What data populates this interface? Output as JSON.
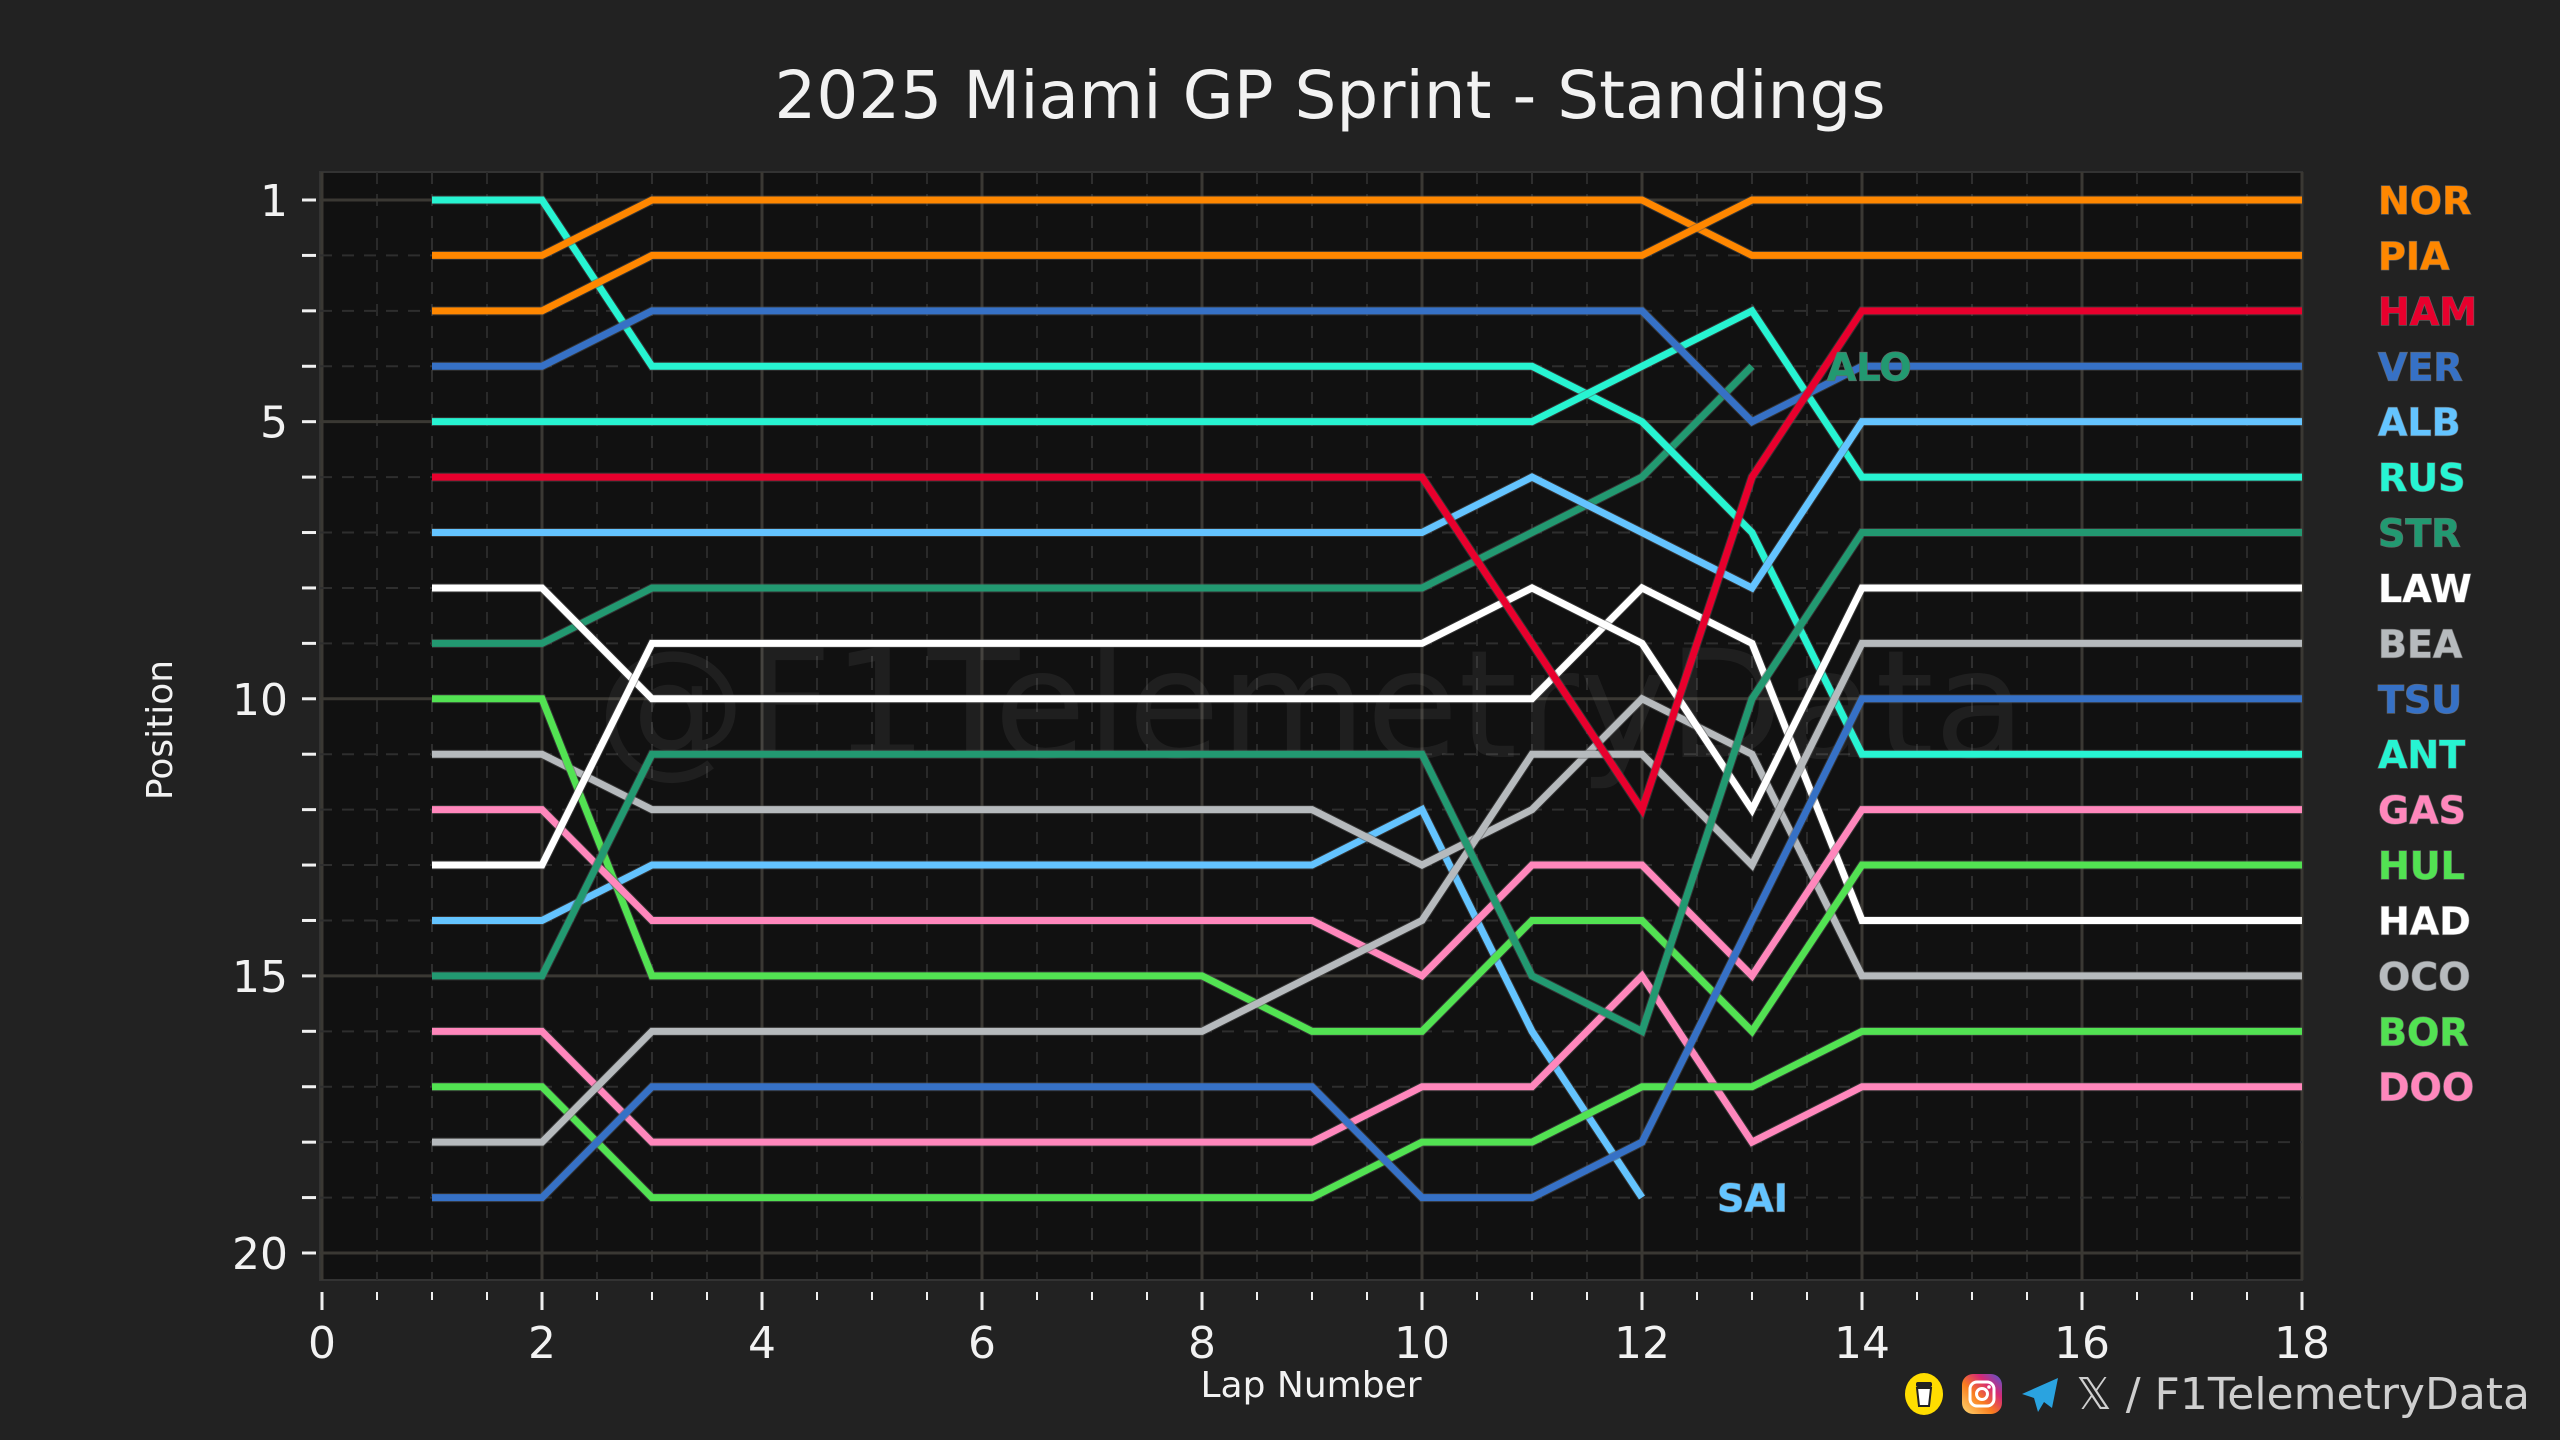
{
  "chart_data": {
    "type": "line",
    "title": "2025 Miami GP Sprint - Standings",
    "xlabel": "Lap Number",
    "ylabel": "Position",
    "xlim": [
      0,
      18
    ],
    "ylim": [
      20,
      1
    ],
    "y_inverted": true,
    "x_ticks": [
      0,
      2,
      4,
      6,
      8,
      10,
      12,
      14,
      16,
      18
    ],
    "y_ticks": [
      1,
      5,
      10,
      15,
      20
    ],
    "grid": true,
    "legend_placement": "right",
    "watermark": "@F1TelemetryData",
    "x": [
      1,
      2,
      3,
      4,
      5,
      6,
      7,
      8,
      9,
      10,
      11,
      12,
      13,
      14,
      15,
      16,
      17,
      18
    ],
    "series": [
      {
        "name": "NOR",
        "color": "#ff8700",
        "values": [
          3,
          3,
          2,
          2,
          2,
          2,
          2,
          2,
          2,
          2,
          2,
          2,
          1,
          1,
          1,
          1,
          1,
          1
        ]
      },
      {
        "name": "PIA",
        "color": "#ff8700",
        "values": [
          2,
          2,
          1,
          1,
          1,
          1,
          1,
          1,
          1,
          1,
          1,
          1,
          2,
          2,
          2,
          2,
          2,
          2
        ]
      },
      {
        "name": "HAM",
        "color": "#e8002d",
        "values": [
          6,
          6,
          6,
          6,
          6,
          6,
          6,
          6,
          6,
          6,
          9,
          12,
          6,
          3,
          3,
          3,
          3,
          3
        ]
      },
      {
        "name": "VER",
        "color": "#3671c6",
        "values": [
          4,
          4,
          3,
          3,
          3,
          3,
          3,
          3,
          3,
          3,
          3,
          3,
          5,
          4,
          4,
          4,
          4,
          4
        ]
      },
      {
        "name": "ALB",
        "color": "#64c4ff",
        "values": [
          7,
          7,
          7,
          7,
          7,
          7,
          7,
          7,
          7,
          7,
          6,
          7,
          8,
          5,
          5,
          5,
          5,
          5
        ]
      },
      {
        "name": "RUS",
        "color": "#27f4d2",
        "values": [
          5,
          5,
          5,
          5,
          5,
          5,
          5,
          5,
          5,
          5,
          5,
          4,
          3,
          6,
          6,
          6,
          6,
          6
        ]
      },
      {
        "name": "STR",
        "color": "#229971",
        "values": [
          15,
          15,
          11,
          11,
          11,
          11,
          11,
          11,
          11,
          11,
          15,
          16,
          10,
          7,
          7,
          7,
          7,
          7
        ]
      },
      {
        "name": "LAW",
        "color": "#ffffff",
        "values": [
          13,
          13,
          9,
          9,
          9,
          9,
          9,
          9,
          9,
          9,
          8,
          9,
          12,
          8,
          8,
          8,
          8,
          8
        ]
      },
      {
        "name": "BEA",
        "color": "#b6babd",
        "values": [
          18,
          18,
          16,
          16,
          16,
          16,
          16,
          16,
          15,
          14,
          11,
          11,
          13,
          9,
          9,
          9,
          9,
          9
        ]
      },
      {
        "name": "TSU",
        "color": "#3671c6",
        "values": [
          19,
          19,
          17,
          17,
          17,
          17,
          17,
          17,
          17,
          19,
          19,
          18,
          14,
          10,
          10,
          10,
          10,
          10
        ]
      },
      {
        "name": "ANT",
        "color": "#27f4d2",
        "values": [
          1,
          1,
          4,
          4,
          4,
          4,
          4,
          4,
          4,
          4,
          4,
          5,
          7,
          11,
          11,
          11,
          11,
          11
        ]
      },
      {
        "name": "GAS",
        "color": "#ff87bc",
        "values": [
          12,
          12,
          14,
          14,
          14,
          14,
          14,
          14,
          14,
          15,
          13,
          13,
          15,
          12,
          12,
          12,
          12,
          12
        ]
      },
      {
        "name": "HUL",
        "color": "#52e252",
        "values": [
          10,
          10,
          15,
          15,
          15,
          15,
          15,
          15,
          16,
          16,
          14,
          14,
          16,
          13,
          13,
          13,
          13,
          13
        ]
      },
      {
        "name": "HAD",
        "color": "#ffffff",
        "values": [
          8,
          8,
          10,
          10,
          10,
          10,
          10,
          10,
          10,
          10,
          10,
          8,
          9,
          14,
          14,
          14,
          14,
          14
        ]
      },
      {
        "name": "OCO",
        "color": "#b6babd",
        "values": [
          11,
          11,
          12,
          12,
          12,
          12,
          12,
          12,
          12,
          13,
          12,
          10,
          11,
          15,
          15,
          15,
          15,
          15
        ]
      },
      {
        "name": "BOR",
        "color": "#52e252",
        "values": [
          17,
          17,
          19,
          19,
          19,
          19,
          19,
          19,
          19,
          18,
          18,
          17,
          17,
          16,
          16,
          16,
          16,
          16
        ]
      },
      {
        "name": "DOO",
        "color": "#ff87bc",
        "values": [
          16,
          16,
          18,
          18,
          18,
          18,
          18,
          18,
          18,
          17,
          17,
          15,
          18,
          17,
          17,
          17,
          17,
          17
        ]
      }
    ],
    "retired_series": [
      {
        "name": "ALO",
        "color": "#229971",
        "values": [
          9,
          9,
          8,
          8,
          8,
          8,
          8,
          8,
          8,
          8,
          7,
          6,
          4
        ],
        "label": "ALO"
      },
      {
        "name": "SAI",
        "color": "#64c4ff",
        "values": [
          14,
          14,
          13,
          13,
          13,
          13,
          13,
          13,
          13,
          12,
          16,
          19
        ],
        "label": "SAI"
      }
    ]
  },
  "footer": {
    "icons": [
      "coffee-cup-icon",
      "instagram-icon",
      "telegram-icon",
      "x-icon"
    ],
    "x_glyph": "𝕏",
    "handle": "/ F1TelemetryData"
  }
}
